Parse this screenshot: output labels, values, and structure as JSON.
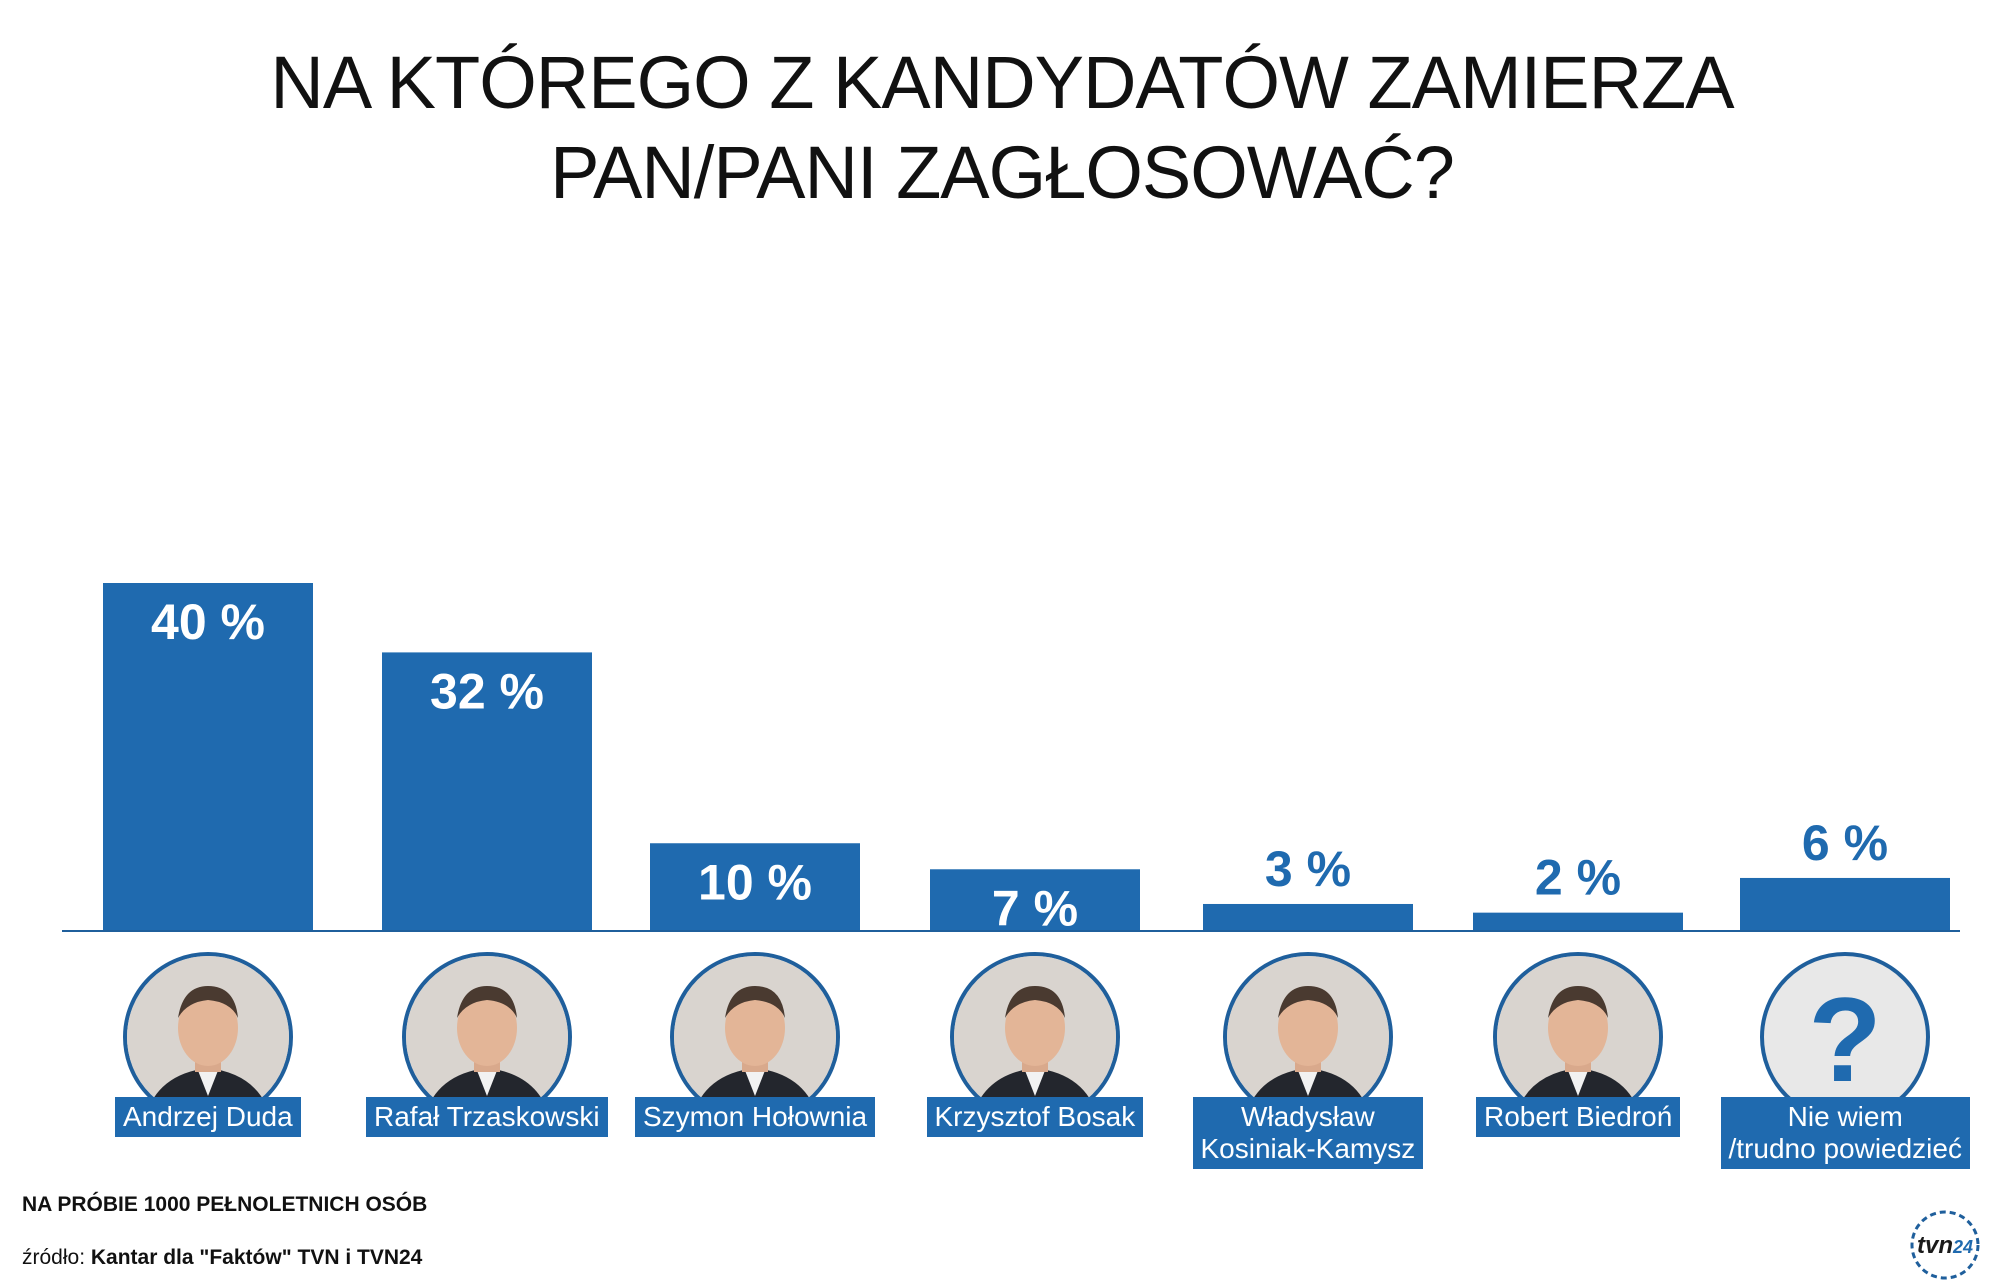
{
  "chart_data": {
    "type": "bar",
    "title_lines": [
      "NA KTÓREGO Z KANDYDATÓW ZAMIERZA",
      "PAN/PANI ZAGŁOSOWAĆ?"
    ],
    "categories": [
      "Andrzej Duda",
      "Rafał Trzaskowski",
      "Szymon Hołownia",
      "Krzysztof Bosak",
      "Władysław Kosiniak-Kamysz",
      "Robert Biedroń",
      "Nie wiem /trudno powiedzieć"
    ],
    "values": [
      40,
      32,
      10,
      7,
      3,
      2,
      6
    ],
    "value_labels": [
      "40 %",
      "32 %",
      "10 %",
      "7 %",
      "3 %",
      "2 %",
      "6 %"
    ],
    "ylim": [
      0,
      40
    ],
    "grid": false,
    "legend": "none",
    "bar_color": "#1f6aaf"
  },
  "candidates": [
    {
      "label_lines": [
        "Andrzej Duda"
      ],
      "icon": "portrait-icon"
    },
    {
      "label_lines": [
        "Rafał Trzaskowski"
      ],
      "icon": "portrait-icon"
    },
    {
      "label_lines": [
        "Szymon Hołownia"
      ],
      "icon": "portrait-icon"
    },
    {
      "label_lines": [
        "Krzysztof Bosak"
      ],
      "icon": "portrait-icon"
    },
    {
      "label_lines": [
        "Władysław",
        "Kosiniak-Kamysz"
      ],
      "icon": "portrait-icon"
    },
    {
      "label_lines": [
        "Robert Biedroń"
      ],
      "icon": "portrait-icon"
    },
    {
      "label_lines": [
        "Nie wiem",
        "/trudno powiedzieć"
      ],
      "icon": "question-mark-icon"
    }
  ],
  "footer": {
    "sample_note": "NA PRÓBIE 1000 PEŁNOLETNICH OSÓB",
    "source_prefix": "źródło:",
    "source_value": "Kantar dla \"Faktów\" TVN i TVN24"
  },
  "logo": {
    "text": "tvn24"
  },
  "colors": {
    "bar": "#1f6aaf",
    "tag": "#1f6aaf",
    "photo_border": "#1f5f9c",
    "axis": "#1f5f9c"
  }
}
